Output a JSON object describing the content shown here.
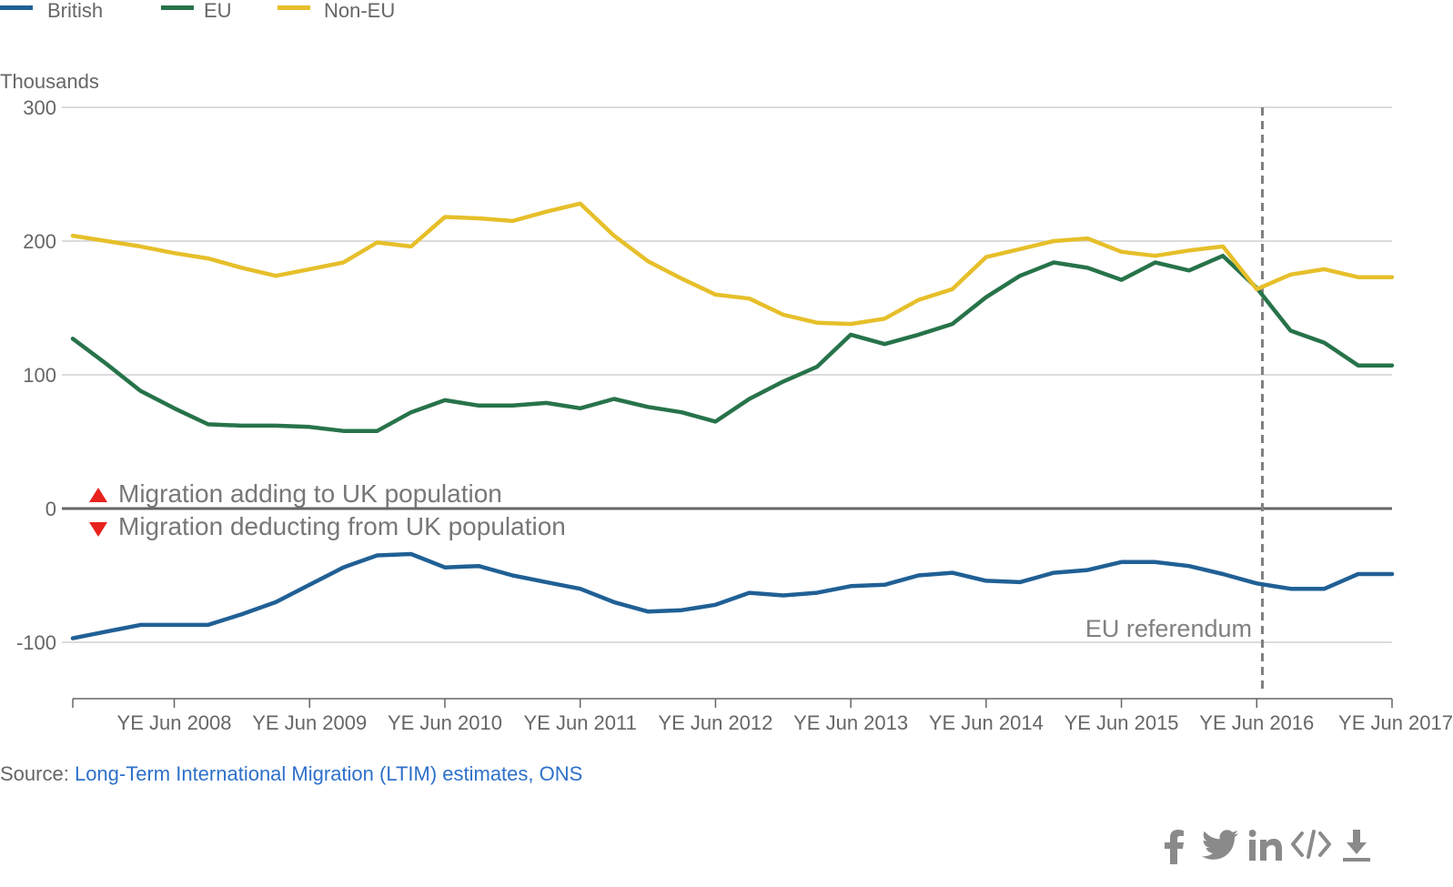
{
  "chart_data": {
    "type": "line",
    "ylabel": "Thousands",
    "ylim": [
      -150,
      300
    ],
    "yticks": [
      300,
      200,
      100,
      0,
      -100
    ],
    "x_tick_labels": [
      "YE Jun 2008",
      "YE Jun 2009",
      "YE Jun 2010",
      "YE Jun 2011",
      "YE Jun 2012",
      "YE Jun 2013",
      "YE Jun 2014",
      "YE Jun 2015",
      "YE Jun 2016",
      "YE Jun 2017"
    ],
    "x": [
      "YE Sep 2007",
      "YE Dec 2007",
      "YE Mar 2008",
      "YE Jun 2008",
      "YE Sep 2008",
      "YE Dec 2008",
      "YE Mar 2009",
      "YE Jun 2009",
      "YE Sep 2009",
      "YE Dec 2009",
      "YE Mar 2010",
      "YE Jun 2010",
      "YE Sep 2010",
      "YE Dec 2010",
      "YE Mar 2011",
      "YE Jun 2011",
      "YE Sep 2011",
      "YE Dec 2011",
      "YE Mar 2012",
      "YE Jun 2012",
      "YE Sep 2012",
      "YE Dec 2012",
      "YE Mar 2013",
      "YE Jun 2013",
      "YE Sep 2013",
      "YE Dec 2013",
      "YE Mar 2014",
      "YE Jun 2014",
      "YE Sep 2014",
      "YE Dec 2014",
      "YE Mar 2015",
      "YE Jun 2015",
      "YE Sep 2015",
      "YE Dec 2015",
      "YE Mar 2016",
      "YE Jun 2016",
      "YE Sep 2016",
      "YE Dec 2016",
      "YE Mar 2017",
      "YE Jun 2017"
    ],
    "series": [
      {
        "name": "British",
        "color": "#206095",
        "values": [
          -97,
          -92,
          -87,
          -87,
          -87,
          -79,
          -70,
          -57,
          -44,
          -35,
          -34,
          -44,
          -43,
          -50,
          -55,
          -60,
          -70,
          -77,
          -76,
          -72,
          -63,
          -65,
          -63,
          -58,
          -57,
          -50,
          -48,
          -54,
          -55,
          -48,
          -46,
          -40,
          -40,
          -43,
          -49,
          -56,
          -60,
          -60,
          -49,
          -49
        ]
      },
      {
        "name": "EU",
        "color": "#27734a",
        "values": [
          127,
          108,
          88,
          75,
          63,
          62,
          62,
          61,
          58,
          58,
          72,
          81,
          77,
          77,
          79,
          75,
          82,
          76,
          72,
          65,
          82,
          95,
          106,
          130,
          123,
          130,
          138,
          158,
          174,
          184,
          180,
          171,
          184,
          178,
          189,
          165,
          133,
          124,
          107,
          107
        ]
      },
      {
        "name": "Non-EU",
        "color": "#e6bf2a",
        "values": [
          204,
          200,
          196,
          191,
          187,
          180,
          174,
          179,
          184,
          199,
          196,
          218,
          217,
          215,
          222,
          228,
          204,
          185,
          172,
          160,
          157,
          145,
          139,
          138,
          142,
          156,
          164,
          188,
          194,
          200,
          202,
          192,
          189,
          193,
          196,
          164,
          175,
          179,
          173,
          173
        ]
      }
    ],
    "legend_position": "top-left",
    "annotations": {
      "adding": "Migration adding to UK population",
      "deducting": "Migration deducting from UK population",
      "referendum": "EU referendum"
    },
    "referendum_x": "YE Jun 2016",
    "grid": true
  },
  "source": {
    "label": "Source:",
    "link_text": "Long-Term International Migration (LTIM) estimates, ONS"
  },
  "share": {
    "icons": [
      "facebook-icon",
      "twitter-icon",
      "linkedin-icon",
      "embed-code-icon",
      "download-icon"
    ]
  }
}
